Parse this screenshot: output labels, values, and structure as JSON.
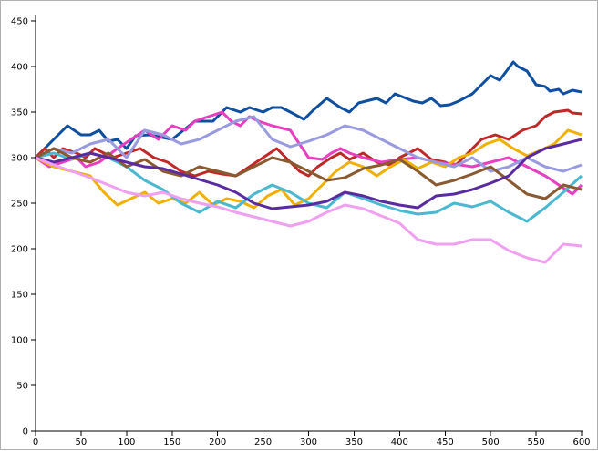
{
  "chart_data": {
    "type": "line",
    "title": "",
    "xlabel": "",
    "ylabel": "",
    "xlim": [
      0,
      600
    ],
    "ylim": [
      0,
      450
    ],
    "grid": false,
    "x_ticks": [
      0,
      50,
      100,
      150,
      200,
      250,
      300,
      350,
      400,
      450,
      500,
      550,
      600
    ],
    "y_ticks": [
      0,
      50,
      100,
      150,
      200,
      250,
      300,
      350,
      400,
      450
    ],
    "series": [
      {
        "color": "#0f4fa0",
        "x": [
          0,
          35,
          50,
          60,
          70,
          80,
          90,
          100,
          110,
          125,
          150,
          175,
          195,
          210,
          225,
          235,
          250,
          260,
          270,
          280,
          295,
          305,
          320,
          335,
          345,
          355,
          375,
          385,
          395,
          415,
          425,
          435,
          445,
          455,
          465,
          480,
          490,
          500,
          510,
          525,
          530,
          540,
          550,
          560,
          565,
          575,
          580,
          590,
          595,
          600
        ],
        "y": [
          300,
          335,
          325,
          325,
          330,
          318,
          320,
          310,
          324,
          325,
          320,
          340,
          340,
          355,
          350,
          355,
          350,
          355,
          355,
          350,
          342,
          352,
          365,
          355,
          350,
          360,
          365,
          360,
          370,
          362,
          360,
          365,
          357,
          358,
          362,
          370,
          380,
          390,
          385,
          405,
          400,
          395,
          380,
          378,
          373,
          375,
          370,
          374,
          373,
          372
        ]
      },
      {
        "color": "#c02828",
        "x": [
          0,
          10,
          20,
          30,
          45,
          55,
          65,
          75,
          85,
          100,
          115,
          130,
          145,
          160,
          175,
          190,
          205,
          220,
          235,
          250,
          265,
          280,
          290,
          300,
          310,
          325,
          335,
          345,
          360,
          375,
          390,
          400,
          410,
          420,
          435,
          450,
          460,
          475,
          490,
          505,
          520,
          535,
          550,
          560,
          570,
          585,
          590,
          600
        ],
        "y": [
          300,
          310,
          300,
          310,
          305,
          300,
          310,
          305,
          300,
          305,
          310,
          300,
          295,
          285,
          280,
          285,
          282,
          280,
          290,
          300,
          310,
          295,
          285,
          280,
          290,
          300,
          305,
          298,
          305,
          295,
          292,
          300,
          305,
          310,
          298,
          295,
          290,
          305,
          320,
          325,
          320,
          330,
          335,
          345,
          350,
          352,
          349,
          348
        ]
      },
      {
        "color": "#e83ec0",
        "x": [
          0,
          15,
          30,
          45,
          55,
          70,
          90,
          105,
          120,
          135,
          150,
          165,
          175,
          190,
          205,
          215,
          225,
          235,
          245,
          260,
          280,
          300,
          315,
          325,
          335,
          345,
          360,
          380,
          400,
          420,
          440,
          460,
          480,
          500,
          520,
          540,
          560,
          575,
          590,
          600
        ],
        "y": [
          300,
          290,
          295,
          300,
          290,
          295,
          310,
          320,
          330,
          320,
          335,
          330,
          340,
          345,
          350,
          340,
          335,
          345,
          340,
          335,
          330,
          300,
          298,
          305,
          310,
          305,
          300,
          295,
          298,
          300,
          295,
          293,
          290,
          295,
          300,
          290,
          280,
          270,
          260,
          270
        ]
      },
      {
        "color": "#f0b000",
        "x": [
          0,
          20,
          40,
          60,
          75,
          90,
          105,
          120,
          135,
          150,
          165,
          180,
          195,
          210,
          225,
          240,
          255,
          270,
          285,
          300,
          315,
          330,
          345,
          360,
          375,
          390,
          405,
          420,
          435,
          450,
          465,
          480,
          495,
          510,
          525,
          540,
          555,
          570,
          585,
          600
        ],
        "y": [
          300,
          290,
          285,
          280,
          262,
          248,
          255,
          262,
          250,
          255,
          250,
          262,
          248,
          255,
          252,
          245,
          258,
          265,
          248,
          255,
          270,
          285,
          295,
          290,
          280,
          290,
          298,
          288,
          295,
          290,
          300,
          305,
          315,
          320,
          310,
          302,
          308,
          315,
          330,
          325
        ]
      },
      {
        "color": "#4ab8d0",
        "x": [
          0,
          20,
          40,
          60,
          80,
          100,
          120,
          140,
          160,
          180,
          200,
          220,
          240,
          260,
          280,
          300,
          320,
          340,
          360,
          380,
          400,
          420,
          440,
          460,
          480,
          500,
          520,
          540,
          560,
          580,
          600
        ],
        "y": [
          300,
          305,
          298,
          305,
          300,
          290,
          275,
          265,
          250,
          240,
          252,
          245,
          260,
          270,
          262,
          250,
          245,
          262,
          255,
          248,
          242,
          238,
          240,
          250,
          246,
          252,
          240,
          230,
          245,
          262,
          280
        ]
      },
      {
        "color": "#9a9ae0",
        "x": [
          0,
          20,
          40,
          60,
          80,
          100,
          120,
          140,
          160,
          180,
          200,
          220,
          240,
          260,
          280,
          300,
          320,
          340,
          360,
          380,
          400,
          420,
          440,
          460,
          480,
          500,
          520,
          540,
          560,
          580,
          600
        ],
        "y": [
          300,
          310,
          305,
          315,
          320,
          300,
          330,
          325,
          315,
          320,
          330,
          340,
          345,
          320,
          312,
          318,
          325,
          335,
          330,
          320,
          310,
          300,
          295,
          290,
          300,
          285,
          290,
          300,
          290,
          285,
          292
        ]
      },
      {
        "color": "#8a5a30",
        "x": [
          0,
          20,
          40,
          60,
          80,
          100,
          120,
          140,
          160,
          180,
          200,
          220,
          240,
          260,
          280,
          300,
          320,
          340,
          360,
          380,
          400,
          420,
          440,
          460,
          480,
          500,
          520,
          540,
          560,
          580,
          600
        ],
        "y": [
          300,
          310,
          300,
          295,
          305,
          290,
          298,
          285,
          280,
          290,
          285,
          280,
          290,
          300,
          295,
          285,
          275,
          278,
          288,
          292,
          298,
          285,
          270,
          275,
          282,
          290,
          275,
          260,
          255,
          270,
          265
        ]
      },
      {
        "color": "#5a2aa0",
        "x": [
          0,
          20,
          40,
          60,
          80,
          100,
          120,
          140,
          160,
          180,
          200,
          220,
          240,
          260,
          280,
          300,
          320,
          340,
          360,
          380,
          400,
          420,
          440,
          460,
          480,
          500,
          520,
          540,
          560,
          580,
          600
        ],
        "y": [
          300,
          295,
          300,
          305,
          300,
          295,
          290,
          288,
          282,
          276,
          270,
          262,
          250,
          244,
          246,
          248,
          252,
          262,
          258,
          252,
          248,
          245,
          258,
          260,
          265,
          272,
          280,
          300,
          310,
          315,
          320
        ]
      },
      {
        "color": "#f0a0f0",
        "x": [
          0,
          20,
          40,
          60,
          80,
          100,
          120,
          140,
          160,
          180,
          200,
          220,
          240,
          260,
          280,
          300,
          320,
          340,
          360,
          380,
          400,
          420,
          440,
          460,
          480,
          500,
          520,
          540,
          560,
          580,
          600
        ],
        "y": [
          300,
          292,
          285,
          278,
          270,
          262,
          258,
          262,
          255,
          250,
          246,
          240,
          235,
          230,
          225,
          230,
          240,
          248,
          244,
          236,
          228,
          210,
          205,
          205,
          210,
          210,
          198,
          190,
          185,
          205,
          203
        ]
      }
    ]
  }
}
